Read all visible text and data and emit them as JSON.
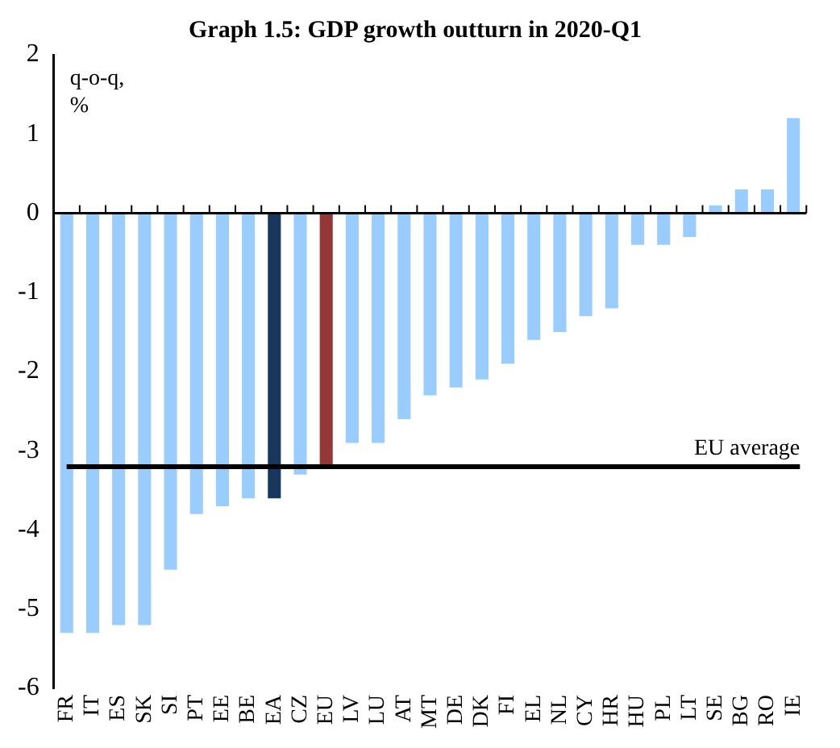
{
  "chart_data": {
    "type": "bar",
    "title": "Graph 1.5: GDP growth outturn in 2020-Q1",
    "ylabel": "q-o-q, %",
    "categories": [
      "FR",
      "IT",
      "ES",
      "SK",
      "SI",
      "PT",
      "EE",
      "BE",
      "EA",
      "CZ",
      "EU",
      "LV",
      "LU",
      "AT",
      "MT",
      "DE",
      "DK",
      "FI",
      "EL",
      "NL",
      "CY",
      "HR",
      "HU",
      "PL",
      "LT",
      "SE",
      "BG",
      "RO",
      "IE"
    ],
    "values": [
      -5.3,
      -5.3,
      -5.2,
      -5.2,
      -4.5,
      -3.8,
      -3.7,
      -3.6,
      -3.6,
      -3.3,
      -3.2,
      -2.9,
      -2.9,
      -2.6,
      -2.3,
      -2.2,
      -2.1,
      -1.9,
      -1.6,
      -1.5,
      -1.3,
      -1.2,
      -0.4,
      -0.4,
      -0.3,
      0.1,
      0.3,
      0.3,
      1.2
    ],
    "colors": [
      "#99ccff",
      "#99ccff",
      "#99ccff",
      "#99ccff",
      "#99ccff",
      "#99ccff",
      "#99ccff",
      "#99ccff",
      "#17375e",
      "#99ccff",
      "#953735",
      "#99ccff",
      "#99ccff",
      "#99ccff",
      "#99ccff",
      "#99ccff",
      "#99ccff",
      "#99ccff",
      "#99ccff",
      "#99ccff",
      "#99ccff",
      "#99ccff",
      "#99ccff",
      "#99ccff",
      "#99ccff",
      "#99ccff",
      "#99ccff",
      "#99ccff",
      "#99ccff"
    ],
    "ylim": [
      -6,
      2
    ],
    "yticks": [
      -6,
      -5,
      -4,
      -3,
      -2,
      -1,
      0,
      1,
      2
    ],
    "ref_lines": [
      {
        "axis": "y",
        "value": -3.2,
        "label": "EU average",
        "color": "#000000"
      }
    ],
    "legend": false
  }
}
